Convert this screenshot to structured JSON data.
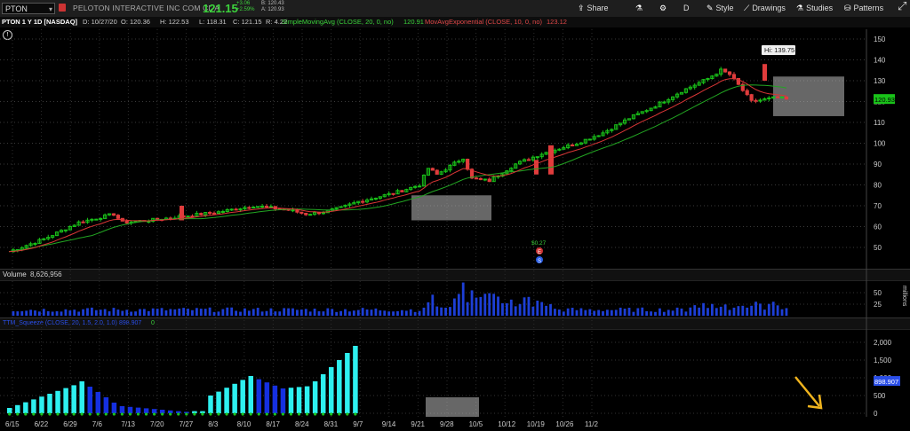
{
  "toolbar": {
    "symbol": "PTON",
    "company": "PELOTON INTERACTIVE INC COM CL A",
    "price": "121.15",
    "change_abs": "+3.06",
    "change_pct": "+2.59%",
    "bid": "B: 120.43",
    "ask": "A: 120.93",
    "share_label": "Share",
    "period_label": "D",
    "style_label": "Style",
    "drawings_label": "Drawings",
    "studies_label": "Studies",
    "patterns_label": "Patterns",
    "icons": [
      "share-icon",
      "flask-icon",
      "gear-icon",
      "pencil-icon",
      "drawings-icon",
      "studies-icon",
      "patterns-icon"
    ]
  },
  "info": {
    "title": "PTON 1 Y 1D [NASDAQ]",
    "date": "D: 10/27/20",
    "open": "O: 120.36",
    "high": "H: 122.53",
    "low": "L: 118.31",
    "close": "C: 121.15",
    "range": "R: 4.22",
    "sma_label": "SimpleMovingAvg (CLOSE, 20, 0, no)",
    "sma_value": "120.91",
    "ema_label": "MovAvgExponential (CLOSE, 10, 0, no)",
    "ema_value": "123.12"
  },
  "colors": {
    "up": "#19c219",
    "down": "#e03c3c",
    "sma": "#22a522",
    "ema": "#d93636",
    "vol": "#1d3fd6",
    "hist_up": "#2ef0f0",
    "hist_dn": "#1530e0"
  },
  "main_axis": {
    "ticks": [
      "150",
      "140",
      "130",
      "120",
      "110",
      "100",
      "90",
      "80",
      "70",
      "60",
      "50"
    ],
    "hi_label": "Hi: 139.75",
    "last_label": "120.93"
  },
  "events": {
    "div_label": "$0.27",
    "earn_icon": "E",
    "split_icon": "S"
  },
  "volume": {
    "label": "Volume",
    "value": "8,626,956",
    "ticks": [
      "50",
      "25"
    ],
    "unit": "millions"
  },
  "study": {
    "label": "TTM_Squeeze (CLOSE, 20, 1.5, 2.0, 1.0)",
    "value": "898.907",
    "ticks": [
      "2,000",
      "1,500",
      "1,000",
      "500",
      "0"
    ],
    "last_label": "898.907",
    "zero_value": "0"
  },
  "x_axis": [
    "6/15",
    "6/22",
    "6/29",
    "7/6",
    "7/13",
    "7/20",
    "7/27",
    "8/3",
    "8/10",
    "8/17",
    "8/24",
    "8/31",
    "9/7",
    "9/14",
    "9/21",
    "9/28",
    "10/5",
    "10/12",
    "10/19",
    "10/26",
    "11/2"
  ]
}
